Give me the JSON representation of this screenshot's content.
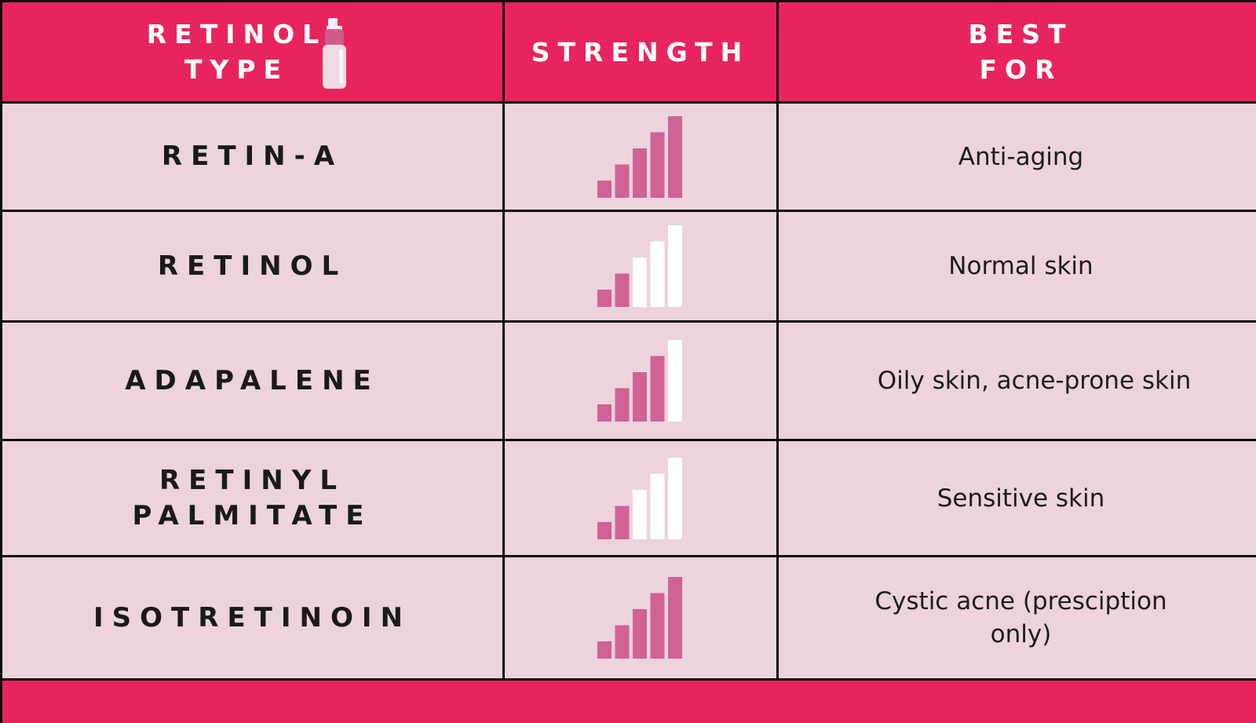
{
  "header": {
    "retinol_type_line1": "RETINOL",
    "retinol_type_line2": "TYPE",
    "strength": "STRENGTH",
    "best_for_line1": "BEST",
    "best_for_line2": "FOR"
  },
  "icons": {
    "header": "serum-bottle-icon",
    "strength": "signal-bars-icon"
  },
  "colors": {
    "header_background": "#e8245e",
    "row_background": "#ecd3de",
    "bar_filled": "#d06294",
    "bar_empty": "#ffffff",
    "grid_lines": "#0c0c0c"
  },
  "strength_scale_max": 5,
  "rows": [
    {
      "type_lines": [
        "RETIN-A"
      ],
      "strength": 5,
      "best_for_lines": [
        "Anti-aging"
      ]
    },
    {
      "type_lines": [
        "RETINOL"
      ],
      "strength": 2,
      "best_for_lines": [
        "Normal skin"
      ]
    },
    {
      "type_lines": [
        "ADAPALENE"
      ],
      "strength": 4,
      "best_for_lines": [
        "Oily skin, acne-prone skin"
      ]
    },
    {
      "type_lines": [
        "RETINYL",
        "PALMITATE"
      ],
      "strength": 2,
      "best_for_lines": [
        "Sensitive skin"
      ]
    },
    {
      "type_lines": [
        "ISOTRETINOIN"
      ],
      "strength": 5,
      "best_for_lines": [
        "Cystic acne (presciption",
        "only)"
      ]
    }
  ]
}
